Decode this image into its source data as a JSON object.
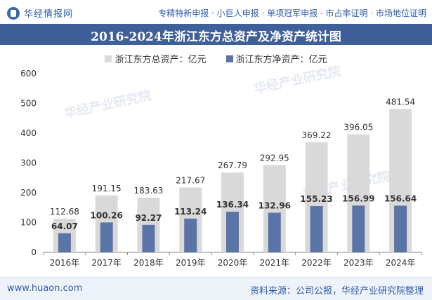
{
  "header": {
    "brand": "华经情报网",
    "services": "专精特新申报 · 小巨人申报 · 单项冠军申报 · 市占率证明 · 市场地位证明"
  },
  "title": "2016-2024年浙江东方总资产及净资产统计图",
  "footer": {
    "site": "www.huaon.com",
    "source": "资料来源：公司公报，华经产业研究院整理"
  },
  "watermark": "华经产业研究院",
  "colors": {
    "title_bg": "#3f5f98",
    "total_assets": "#d9d9d9",
    "net_assets": "#5b74a8"
  },
  "chart_data": {
    "type": "bar",
    "title": "2016-2024年浙江东方总资产及净资产统计图",
    "categories": [
      "2016年",
      "2017年",
      "2018年",
      "2019年",
      "2020年",
      "2021年",
      "2022年",
      "2023年",
      "2024年"
    ],
    "series": [
      {
        "name": "浙江东方总资产：亿元",
        "values": [
          112.68,
          191.15,
          183.63,
          217.67,
          267.79,
          292.95,
          369.22,
          396.05,
          481.54
        ]
      },
      {
        "name": "浙江东方净资产：亿元",
        "values": [
          64.07,
          100.26,
          92.27,
          113.24,
          136.34,
          132.96,
          155.23,
          156.99,
          156.64
        ]
      }
    ],
    "ylim": [
      0,
      600
    ],
    "yticks": [
      0,
      100,
      200,
      300,
      400,
      500,
      600
    ],
    "xlabel": "",
    "ylabel": "",
    "legend": "top-center",
    "grid": false
  }
}
